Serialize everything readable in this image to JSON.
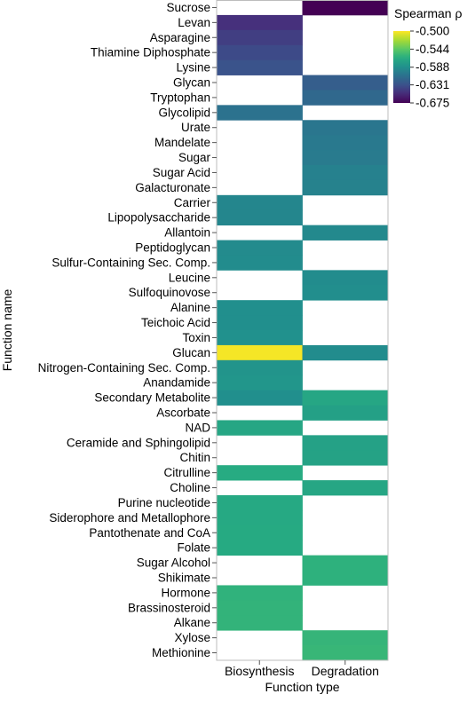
{
  "chart_data": {
    "type": "heatmap",
    "xlabel": "Function type",
    "ylabel": "Function name",
    "columns": [
      "Biosynthesis",
      "Degradation"
    ],
    "rows": [
      {
        "name": "Sucrose",
        "values": [
          null,
          -0.675
        ]
      },
      {
        "name": "Levan",
        "values": [
          -0.65,
          null
        ]
      },
      {
        "name": "Asparagine",
        "values": [
          -0.642,
          null
        ]
      },
      {
        "name": "Thiamine Diphosphate",
        "values": [
          -0.635,
          null
        ]
      },
      {
        "name": "Lysine",
        "values": [
          -0.63,
          null
        ]
      },
      {
        "name": "Glycan",
        "values": [
          null,
          -0.622
        ]
      },
      {
        "name": "Tryptophan",
        "values": [
          null,
          -0.615
        ]
      },
      {
        "name": "Glycolipid",
        "values": [
          -0.608,
          null
        ]
      },
      {
        "name": "Urate",
        "values": [
          null,
          -0.605
        ]
      },
      {
        "name": "Mandelate",
        "values": [
          null,
          -0.603
        ]
      },
      {
        "name": "Sugar",
        "values": [
          null,
          -0.602
        ]
      },
      {
        "name": "Sugar Acid",
        "values": [
          null,
          -0.598
        ]
      },
      {
        "name": "Galacturonate",
        "values": [
          null,
          -0.597
        ]
      },
      {
        "name": "Carrier",
        "values": [
          -0.594,
          null
        ]
      },
      {
        "name": "Lipopolysaccharide",
        "values": [
          -0.594,
          null
        ]
      },
      {
        "name": "Allantoin",
        "values": [
          null,
          -0.592
        ]
      },
      {
        "name": "Peptidoglycan",
        "values": [
          -0.591,
          null
        ]
      },
      {
        "name": "Sulfur-Containing Sec. Comp.",
        "values": [
          -0.59,
          null
        ]
      },
      {
        "name": "Leucine",
        "values": [
          null,
          -0.59
        ]
      },
      {
        "name": "Sulfoquinovose",
        "values": [
          null,
          -0.589
        ]
      },
      {
        "name": "Alanine",
        "values": [
          -0.588,
          null
        ]
      },
      {
        "name": "Teichoic Acid",
        "values": [
          -0.588,
          null
        ]
      },
      {
        "name": "Toxin",
        "values": [
          -0.587,
          null
        ]
      },
      {
        "name": "Glucan",
        "values": [
          -0.502,
          -0.59
        ]
      },
      {
        "name": "Nitrogen-Containing Sec. Comp.",
        "values": [
          -0.584,
          null
        ]
      },
      {
        "name": "Anandamide",
        "values": [
          -0.583,
          null
        ]
      },
      {
        "name": "Secondary Metabolite",
        "values": [
          -0.588,
          -0.57
        ]
      },
      {
        "name": "Ascorbate",
        "values": [
          null,
          -0.575
        ]
      },
      {
        "name": "NAD",
        "values": [
          -0.57,
          null
        ]
      },
      {
        "name": "Ceramide and Sphingolipid",
        "values": [
          null,
          -0.574
        ]
      },
      {
        "name": "Chitin",
        "values": [
          null,
          -0.573
        ]
      },
      {
        "name": "Citrulline",
        "values": [
          -0.566,
          null
        ]
      },
      {
        "name": "Choline",
        "values": [
          null,
          -0.57
        ]
      },
      {
        "name": "Purine nucleotide",
        "values": [
          -0.568,
          null
        ]
      },
      {
        "name": "Siderophore and Metallophore",
        "values": [
          -0.568,
          null
        ]
      },
      {
        "name": "Pantothenate and CoA",
        "values": [
          -0.567,
          null
        ]
      },
      {
        "name": "Folate",
        "values": [
          -0.567,
          null
        ]
      },
      {
        "name": "Sugar Alcohol",
        "values": [
          null,
          -0.562
        ]
      },
      {
        "name": "Shikimate",
        "values": [
          null,
          -0.562
        ]
      },
      {
        "name": "Hormone",
        "values": [
          -0.561,
          null
        ]
      },
      {
        "name": "Brassinosteroid",
        "values": [
          -0.56,
          null
        ]
      },
      {
        "name": "Alkane",
        "values": [
          -0.56,
          null
        ]
      },
      {
        "name": "Xylose",
        "values": [
          null,
          -0.559
        ]
      },
      {
        "name": "Methionine",
        "values": [
          null,
          -0.558
        ]
      }
    ],
    "colorbar": {
      "title": "Spearman ρ",
      "range": [
        -0.675,
        -0.5
      ],
      "ticks": [
        -0.5,
        -0.544,
        -0.588,
        -0.631,
        -0.675
      ],
      "tick_labels": [
        "-0.500",
        "-0.544",
        "-0.588",
        "-0.631",
        "-0.675"
      ],
      "colormap": "viridis"
    },
    "legend_position": "top-right",
    "grid": false
  }
}
